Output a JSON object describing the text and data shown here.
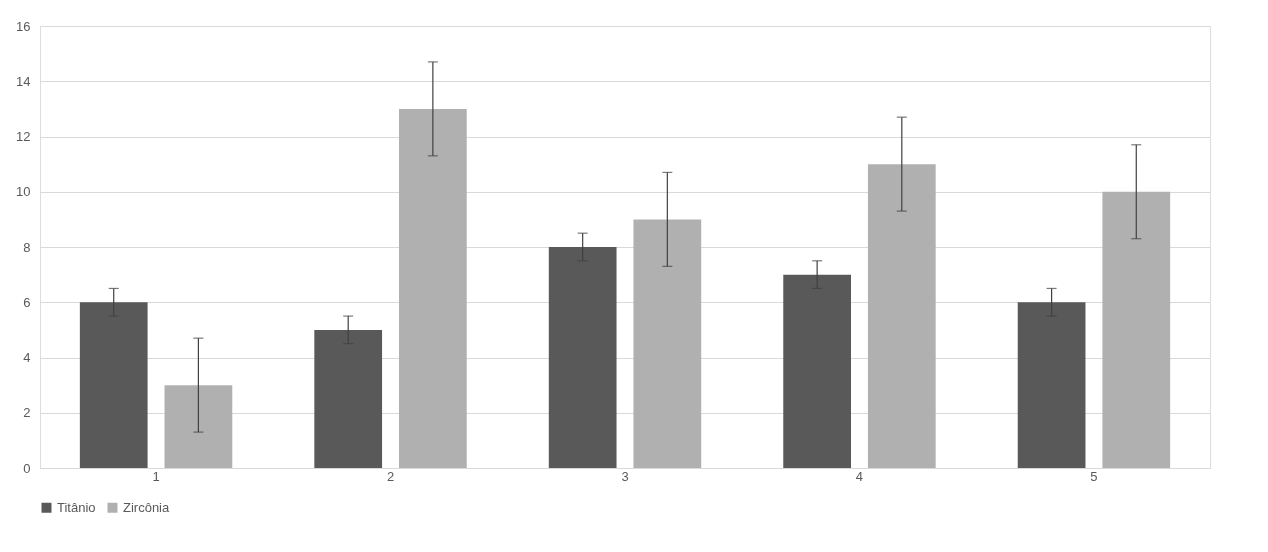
{
  "chart_data": {
    "type": "bar",
    "categories": [
      "1",
      "2",
      "3",
      "4",
      "5"
    ],
    "series": [
      {
        "name": "Titânio",
        "color": "#595959",
        "values": [
          6,
          5,
          8,
          7,
          6
        ],
        "errors": [
          0.5,
          0.5,
          0.5,
          0.5,
          0.5
        ]
      },
      {
        "name": "Zircônia",
        "color": "#b0b0b0",
        "values": [
          3,
          13,
          9,
          11,
          10
        ],
        "errors": [
          1.7,
          1.7,
          1.7,
          1.7,
          1.7
        ]
      }
    ],
    "ylim": [
      0,
      16
    ],
    "yticks": [
      0,
      2,
      4,
      6,
      8,
      10,
      12,
      14,
      16
    ],
    "grid": "y",
    "legend": "bottom"
  }
}
